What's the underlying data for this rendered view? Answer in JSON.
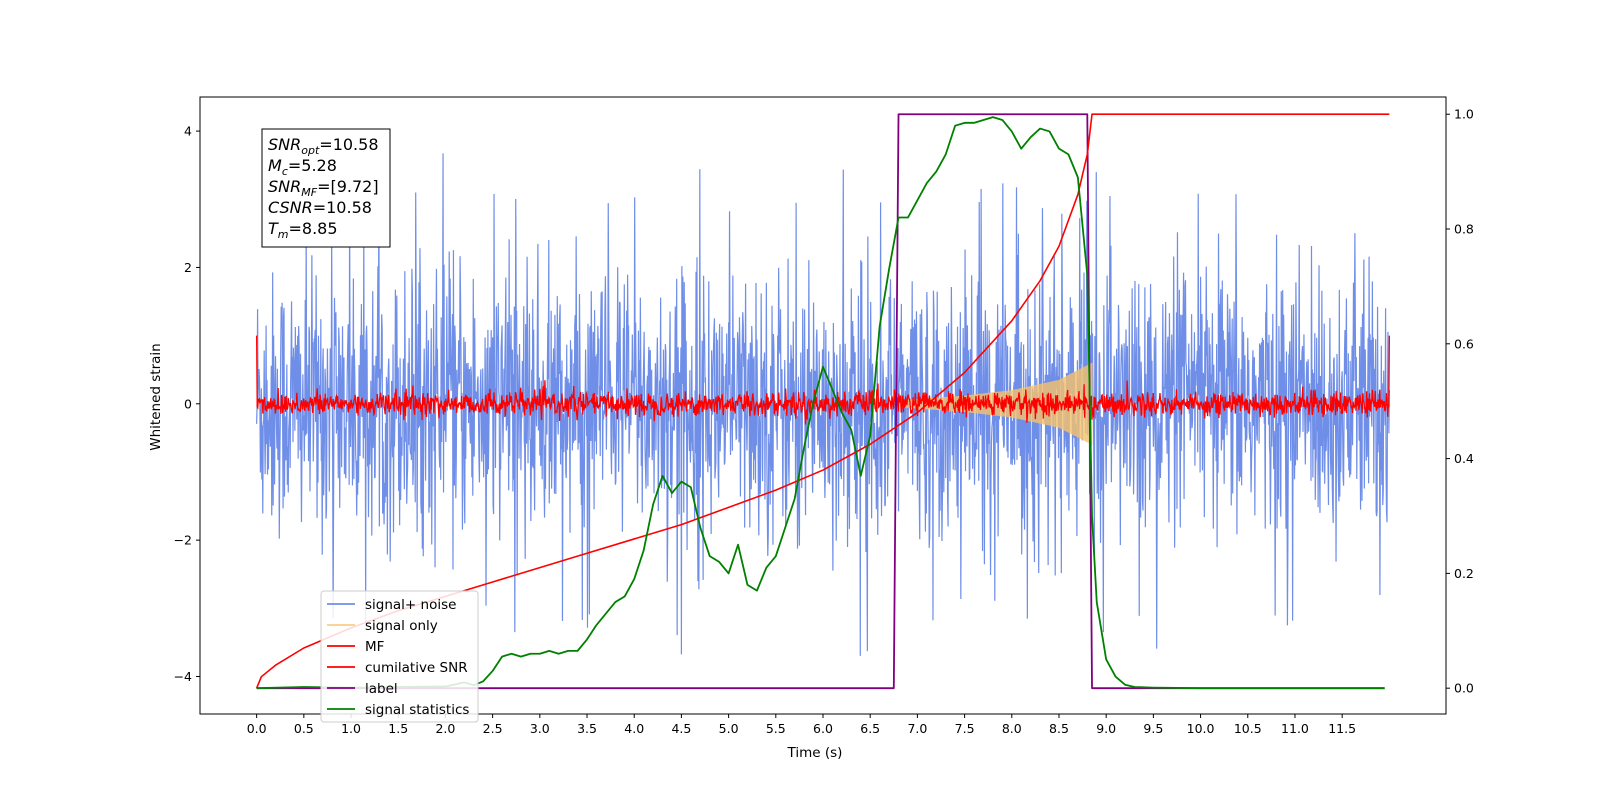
{
  "chart_data": {
    "type": "line",
    "title": "",
    "xlabel": "Time (s)",
    "ylabel": "Whitened strain",
    "y2label": "",
    "xlim": [
      -0.6,
      12.6
    ],
    "ylim": [
      -4.55,
      4.5
    ],
    "y2lim": [
      -0.045,
      1.03
    ],
    "x_ticks": [
      "0.0",
      "0.5",
      "1.0",
      "1.5",
      "2.0",
      "2.5",
      "3.0",
      "3.5",
      "4.0",
      "4.5",
      "5.0",
      "5.5",
      "6.0",
      "6.5",
      "7.0",
      "7.5",
      "8.0",
      "8.5",
      "9.0",
      "9.5",
      "10.0",
      "10.5",
      "11.0",
      "11.5"
    ],
    "y_ticks": [
      "−4",
      "−2",
      "0",
      "2",
      "4"
    ],
    "y2_ticks": [
      "0.0",
      "0.2",
      "0.4",
      "0.6",
      "0.8",
      "1.0"
    ],
    "grid": false,
    "legend_position": "lower-left",
    "annotation": {
      "lines": [
        {
          "main": "SNR",
          "sub": "opt",
          "rest": "=10.58"
        },
        {
          "main": "M",
          "sub": "c",
          "rest": "=5.28"
        },
        {
          "main": "SNR",
          "sub": "MF",
          "rest": "=[9.72]"
        },
        {
          "main": "CSNR",
          "sub": "",
          "rest": "=10.58"
        },
        {
          "main": "T",
          "sub": "m",
          "rest": "=8.85"
        }
      ]
    },
    "series": [
      {
        "name": "signal+ noise",
        "color": "#6f8ee8",
        "axis": "left",
        "kind": "noise",
        "x_range": [
          0.0,
          12.0
        ],
        "amplitude_typical": 1.5,
        "amplitude_peak": 4.1
      },
      {
        "name": "signal only",
        "color": "#f5c26b",
        "axis": "left",
        "kind": "chirp",
        "x_range": [
          6.8,
          8.85
        ],
        "envelope": [
          [
            6.8,
            0.05
          ],
          [
            7.5,
            0.12
          ],
          [
            8.0,
            0.2
          ],
          [
            8.5,
            0.35
          ],
          [
            8.85,
            0.6
          ]
        ]
      },
      {
        "name": "MF",
        "color": "#ff0000",
        "axis": "left",
        "kind": "noise",
        "x_range": [
          0.0,
          12.0
        ],
        "amplitude_typical": 0.15,
        "edge_value": 1.0
      },
      {
        "name": "cumilative SNR",
        "color": "#ff0000",
        "axis": "right",
        "x": [
          0.0,
          0.05,
          0.2,
          0.5,
          1.0,
          1.5,
          2.0,
          2.5,
          3.0,
          3.5,
          4.0,
          4.5,
          5.0,
          5.5,
          6.0,
          6.5,
          7.0,
          7.5,
          8.0,
          8.3,
          8.5,
          8.7,
          8.8,
          8.85,
          9.0,
          10.0,
          11.0,
          12.0
        ],
        "y": [
          0.0,
          0.02,
          0.04,
          0.07,
          0.105,
          0.135,
          0.16,
          0.185,
          0.21,
          0.235,
          0.26,
          0.285,
          0.315,
          0.345,
          0.38,
          0.425,
          0.48,
          0.55,
          0.64,
          0.71,
          0.77,
          0.86,
          0.93,
          1.0,
          1.0,
          1.0,
          1.0,
          1.0
        ]
      },
      {
        "name": "label",
        "color": "#800080",
        "axis": "right",
        "x": [
          0.0,
          6.75,
          6.8,
          8.8,
          8.85,
          11.95
        ],
        "y": [
          0.0,
          0.0,
          1.0,
          1.0,
          0.0,
          0.0
        ]
      },
      {
        "name": "signal statistics",
        "color": "#008000",
        "axis": "right",
        "x": [
          0.0,
          0.5,
          1.0,
          1.5,
          2.0,
          2.2,
          2.3,
          2.4,
          2.5,
          2.6,
          2.7,
          2.8,
          2.9,
          3.0,
          3.1,
          3.2,
          3.3,
          3.4,
          3.5,
          3.6,
          3.7,
          3.8,
          3.9,
          4.0,
          4.1,
          4.2,
          4.3,
          4.4,
          4.5,
          4.6,
          4.7,
          4.8,
          4.9,
          5.0,
          5.1,
          5.2,
          5.3,
          5.4,
          5.5,
          5.6,
          5.7,
          5.8,
          5.9,
          6.0,
          6.1,
          6.2,
          6.3,
          6.4,
          6.5,
          6.6,
          6.7,
          6.8,
          6.9,
          7.0,
          7.1,
          7.2,
          7.3,
          7.4,
          7.5,
          7.6,
          7.7,
          7.8,
          7.9,
          8.0,
          8.1,
          8.2,
          8.3,
          8.4,
          8.5,
          8.6,
          8.7,
          8.8,
          8.85,
          8.9,
          9.0,
          9.1,
          9.2,
          9.3,
          9.5,
          10.0,
          11.0,
          11.95
        ],
        "y": [
          0.0,
          0.002,
          0.001,
          0.002,
          0.003,
          0.01,
          0.005,
          0.012,
          0.03,
          0.055,
          0.06,
          0.055,
          0.06,
          0.06,
          0.065,
          0.06,
          0.065,
          0.065,
          0.085,
          0.11,
          0.13,
          0.15,
          0.16,
          0.19,
          0.24,
          0.32,
          0.37,
          0.34,
          0.36,
          0.35,
          0.28,
          0.23,
          0.22,
          0.2,
          0.25,
          0.18,
          0.17,
          0.21,
          0.23,
          0.28,
          0.33,
          0.42,
          0.5,
          0.56,
          0.52,
          0.48,
          0.45,
          0.37,
          0.44,
          0.63,
          0.73,
          0.82,
          0.82,
          0.85,
          0.88,
          0.9,
          0.93,
          0.98,
          0.985,
          0.985,
          0.99,
          0.995,
          0.99,
          0.97,
          0.94,
          0.96,
          0.975,
          0.97,
          0.94,
          0.93,
          0.89,
          0.72,
          0.3,
          0.15,
          0.05,
          0.02,
          0.006,
          0.002,
          0.001,
          0.0,
          0.0,
          0.0
        ]
      }
    ]
  }
}
